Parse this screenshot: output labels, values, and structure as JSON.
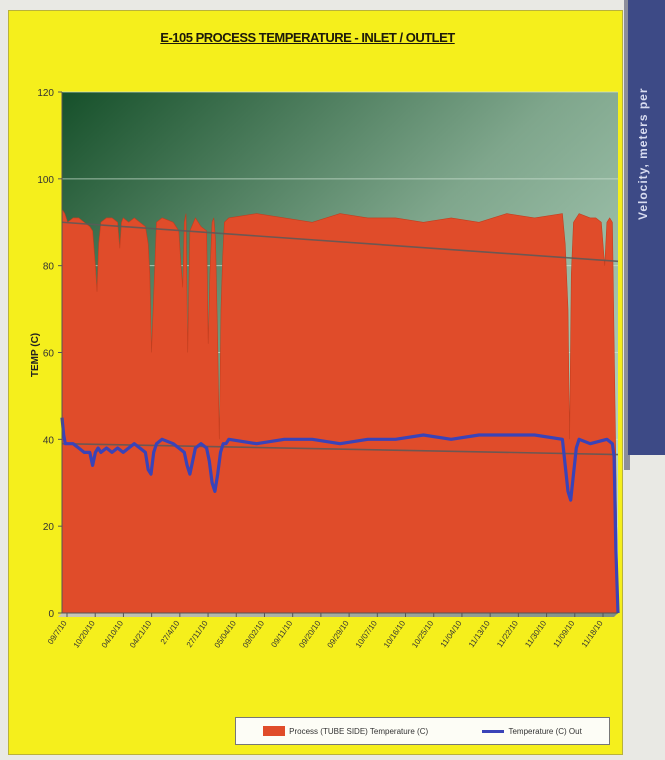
{
  "page": {
    "side_strip_text": "Velocity, meters per"
  },
  "colors": {
    "panel": "#f5ef1c",
    "area": "#e04c2a",
    "line": "#3a43b8",
    "trend": "#5a5a5a"
  },
  "chart_data": {
    "type": "area",
    "title": "E-105 PROCESS TEMPERATURE - INLET / OUTLET",
    "xlabel": "",
    "ylabel": "TEMP (C)",
    "ylim": [
      0,
      120
    ],
    "yticks": [
      0,
      20,
      40,
      60,
      80,
      100,
      120
    ],
    "x_range": [
      0,
      100
    ],
    "xtick_labels": [
      "09/7/10",
      "10/20/10",
      "04/10/10",
      "04/21/10",
      "27/4/10",
      "27/11/10",
      "05/04/10",
      "09/02/10",
      "09/11/10",
      "09/20/10",
      "09/29/10",
      "10/07/10",
      "10/16/10",
      "10/25/10",
      "11/04/10",
      "11/13/10",
      "11/22/10",
      "11/30/10",
      "11/09/10",
      "11/18/10"
    ],
    "legend_position": "bottom-right",
    "series": [
      {
        "name": "Process (TUBE SIDE) Temperature (C)",
        "type": "area",
        "x": [
          0,
          0.5,
          1,
          2,
          3,
          4,
          5,
          5.5,
          6,
          6.3,
          6.6,
          7,
          8,
          9,
          10,
          10.4,
          10.7,
          11,
          12,
          13,
          14,
          15,
          15.5,
          15.8,
          16.1,
          17,
          18,
          20,
          21,
          21.4,
          21.7,
          22,
          22.3,
          22.6,
          23,
          24,
          25,
          26,
          26.3,
          26.6,
          27,
          27.3,
          27.6,
          28,
          28.3,
          28.6,
          28.9,
          29.2,
          30,
          35,
          40,
          45,
          50,
          55,
          60,
          65,
          70,
          75,
          80,
          85,
          90,
          90.5,
          91,
          91.3,
          91.6,
          92,
          92.5,
          93,
          95,
          96,
          97,
          97.3,
          97.6,
          98,
          98.5,
          99,
          100
        ],
        "values": [
          93,
          92,
          90,
          91,
          91,
          90,
          89,
          88,
          80,
          74,
          85,
          90,
          91,
          91,
          90,
          84,
          90,
          91,
          90,
          91,
          90,
          89,
          85,
          78,
          60,
          90,
          91,
          90,
          88,
          80,
          75,
          90,
          92,
          60,
          88,
          91,
          89,
          88,
          62,
          78,
          90,
          91,
          86,
          62,
          40,
          70,
          82,
          90,
          91,
          92,
          91,
          90,
          92,
          91,
          91,
          90,
          91,
          90,
          92,
          91,
          92,
          85,
          70,
          40,
          78,
          90,
          91,
          92,
          91,
          91,
          90,
          85,
          80,
          90,
          91,
          90,
          0
        ]
      },
      {
        "name": "Temperature (C) Out",
        "type": "line",
        "x": [
          0,
          0.3,
          0.6,
          1,
          2,
          3,
          4,
          5,
          5.5,
          6,
          6.5,
          7,
          8,
          9,
          10,
          11,
          12,
          13,
          14,
          15,
          15.5,
          16,
          16.5,
          17,
          18,
          20,
          21,
          22,
          22.5,
          23,
          24,
          25,
          26,
          26.5,
          27,
          27.5,
          28,
          28.5,
          29,
          29.5,
          30,
          35,
          40,
          45,
          50,
          55,
          60,
          65,
          70,
          75,
          80,
          85,
          90,
          90.5,
          91,
          91.5,
          92,
          92.5,
          93,
          95,
          98,
          99,
          99.3,
          99.6,
          100
        ],
        "values": [
          45,
          41,
          39,
          39,
          39,
          38,
          37,
          37,
          34,
          37,
          38,
          37,
          38,
          37,
          38,
          37,
          38,
          39,
          38,
          37,
          33,
          32,
          37,
          39,
          40,
          39,
          38,
          37,
          34,
          32,
          38,
          39,
          38,
          35,
          30,
          28,
          32,
          37,
          39,
          39,
          40,
          39,
          40,
          40,
          39,
          40,
          40,
          41,
          40,
          41,
          41,
          41,
          40,
          34,
          28,
          26,
          32,
          38,
          40,
          39,
          40,
          39,
          36,
          15,
          0
        ]
      },
      {
        "name": "Process trend",
        "type": "trend",
        "x": [
          0,
          100
        ],
        "values": [
          90,
          81
        ]
      },
      {
        "name": "Outlet trend",
        "type": "trend",
        "x": [
          0,
          100
        ],
        "values": [
          39,
          36.5
        ]
      }
    ]
  },
  "legend": {
    "area_label": "Process (TUBE SIDE) Temperature (C)",
    "line_label": "Temperature (C) Out"
  }
}
